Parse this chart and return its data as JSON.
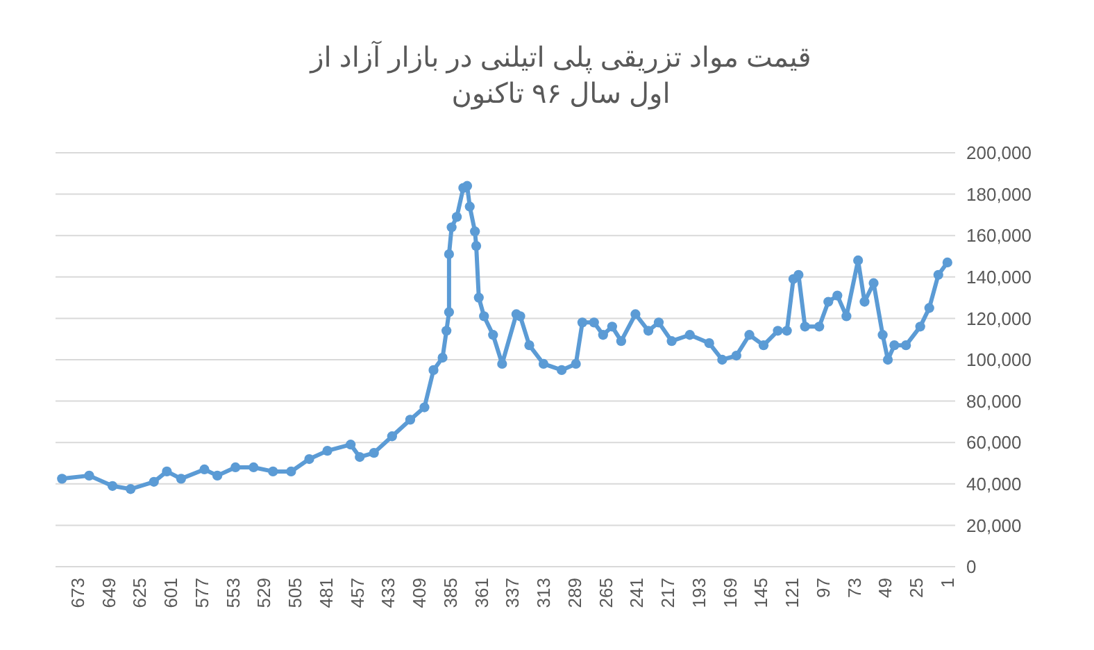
{
  "chart_data": {
    "type": "line",
    "title": "قیمت مواد تزریقی پلی اتیلنی در بازار آزاد   از\nاول سال ۹۶ تاکنون",
    "grid": "y",
    "marker": "circle",
    "line_style": "solid",
    "xlim": [
      690,
      -5
    ],
    "xticks": [
      673,
      649,
      625,
      601,
      577,
      553,
      529,
      505,
      481,
      457,
      433,
      409,
      385,
      361,
      337,
      313,
      289,
      265,
      241,
      217,
      193,
      169,
      145,
      121,
      97,
      73,
      49,
      25,
      1
    ],
    "ylim": [
      0,
      200000
    ],
    "yticks": [
      {
        "value": 0,
        "label": "0"
      },
      {
        "value": 20000,
        "label": "20,000"
      },
      {
        "value": 40000,
        "label": "40,000"
      },
      {
        "value": 60000,
        "label": "60,000"
      },
      {
        "value": 80000,
        "label": "80,000"
      },
      {
        "value": 100000,
        "label": "100,000"
      },
      {
        "value": 120000,
        "label": "120,000"
      },
      {
        "value": 140000,
        "label": "140,000"
      },
      {
        "value": 160000,
        "label": "160,000"
      },
      {
        "value": 180000,
        "label": "180,000"
      },
      {
        "value": 200000,
        "label": "200,000"
      }
    ],
    "series": [
      {
        "color": "#5b9bd5",
        "x": [
          685,
          664,
          646,
          632,
          614,
          604,
          593,
          575,
          565,
          551,
          537,
          522,
          508,
          494,
          480,
          462,
          455,
          444,
          430,
          416,
          405,
          398,
          391,
          388,
          386,
          386,
          384,
          380,
          375,
          372,
          370,
          366,
          365,
          363,
          359,
          352,
          345,
          334,
          331,
          324,
          313,
          299,
          288,
          283,
          274,
          267,
          260,
          253,
          242,
          232,
          224,
          214,
          200,
          185,
          175,
          164,
          154,
          143,
          132,
          125,
          120,
          116,
          111,
          100,
          93,
          86,
          79,
          70,
          65,
          58,
          51,
          47,
          42,
          33,
          22,
          15,
          8,
          1
        ],
        "values": [
          42500,
          44000,
          39000,
          37500,
          41000,
          46000,
          42500,
          47000,
          44000,
          48000,
          48000,
          46000,
          46000,
          52000,
          56000,
          59000,
          53000,
          55000,
          63000,
          71000,
          77000,
          95000,
          101000,
          114000,
          123000,
          151000,
          164000,
          169000,
          183000,
          184000,
          174000,
          162000,
          155000,
          130000,
          121000,
          112000,
          98000,
          122000,
          121000,
          107000,
          98000,
          95000,
          98000,
          118000,
          118000,
          112000,
          116000,
          109000,
          122000,
          114000,
          118000,
          109000,
          112000,
          108000,
          100000,
          102000,
          112000,
          107000,
          114000,
          114000,
          139000,
          141000,
          116000,
          116000,
          128000,
          131000,
          121000,
          148000,
          128000,
          137000,
          112000,
          100000,
          107000,
          107000,
          116000,
          125000,
          141000,
          147000
        ]
      }
    ]
  }
}
